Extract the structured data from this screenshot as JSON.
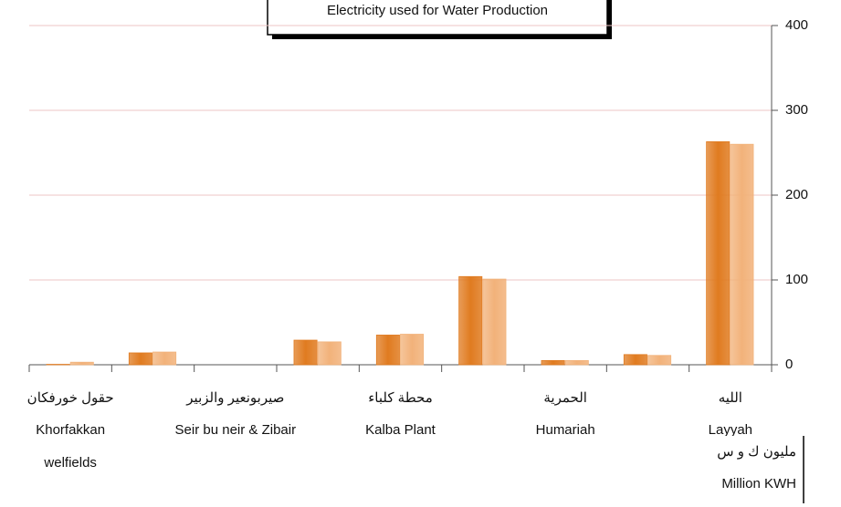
{
  "chart_data": {
    "type": "bar",
    "title": "Electricity used for Water Production",
    "categories": [
      "Khorfakkan welfields",
      null,
      "Seir bu neir & Zibair",
      null,
      "Kalba Plant",
      null,
      "Humariah",
      null,
      "Layyah"
    ],
    "categories_ar": [
      "حقول خورفكان",
      null,
      "صيربونعير والزبير",
      null,
      "محطة كلباء",
      null,
      "الحمرية",
      null,
      "الليه"
    ],
    "series": [
      {
        "color": "#e07b20",
        "values": [
          0.5,
          14,
          0,
          29,
          35,
          104,
          5,
          12,
          263
        ]
      },
      {
        "color": "#f2b27a",
        "values": [
          3,
          15,
          0,
          27,
          36,
          101,
          5,
          11,
          260
        ]
      }
    ],
    "ylim": [
      0,
      400
    ],
    "yticks": [
      0,
      100,
      200,
      300,
      400
    ],
    "grid": true,
    "unit_ar": "مليون ك و س",
    "unit": "Million KWH"
  }
}
